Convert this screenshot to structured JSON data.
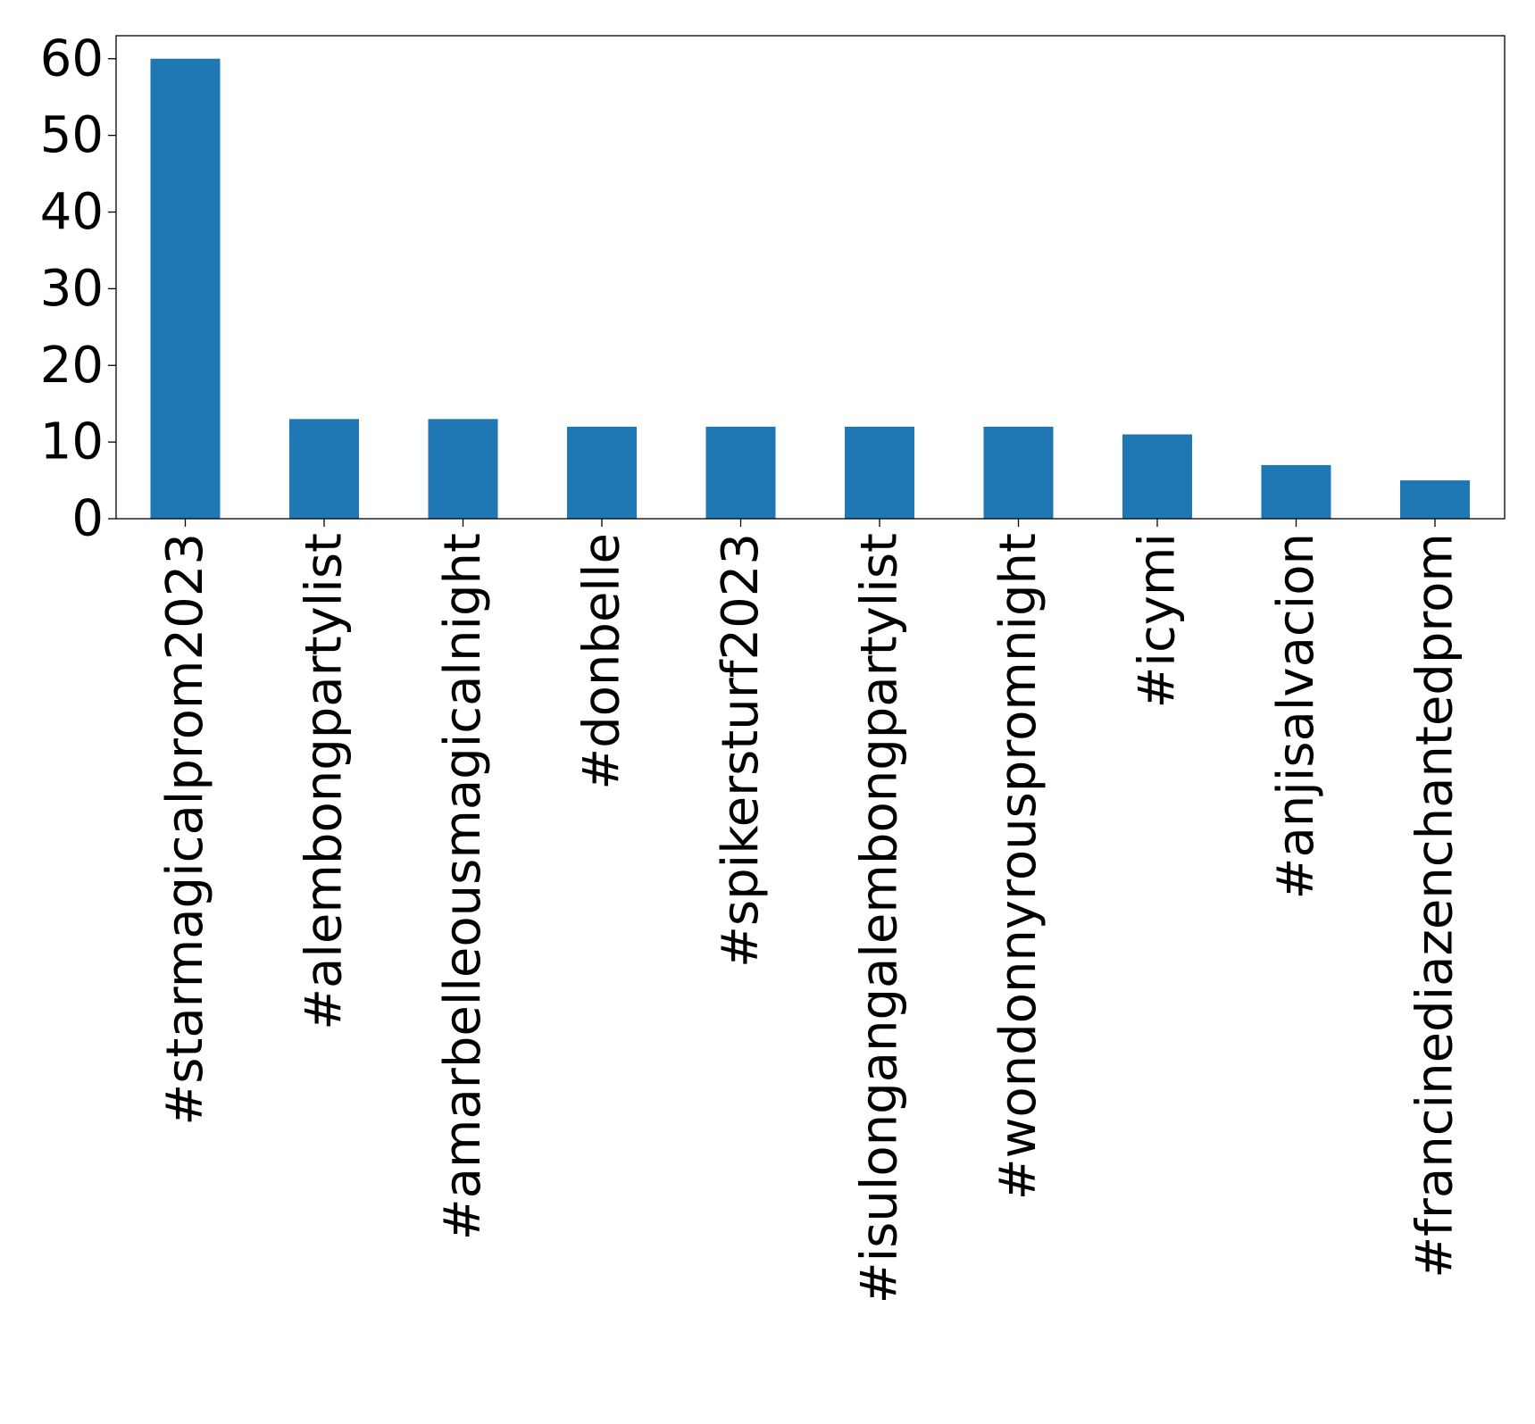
{
  "chart_data": {
    "type": "bar",
    "title": "",
    "xlabel": "",
    "ylabel": "",
    "categories": [
      "#starmagicalprom2023",
      "#alembongpartylist",
      "#amarbelleousmagicalnight",
      "#donbelle",
      "#spikersturf2023",
      "#isulongangalembongpartylist",
      "#wondonnyrouspromnight",
      "#icymi",
      "#anjisalvacion",
      "#francinediazenchantedprom"
    ],
    "values": [
      60,
      13,
      13,
      12,
      12,
      12,
      12,
      11,
      7,
      5
    ],
    "ylim": [
      0,
      63
    ],
    "yticks": [
      0,
      10,
      20,
      30,
      40,
      50,
      60
    ],
    "ytick_labels": [
      "0",
      "10",
      "20",
      "30",
      "40",
      "50",
      "60"
    ],
    "grid": false,
    "legend": "none",
    "bar_color": "#1f77b4"
  }
}
